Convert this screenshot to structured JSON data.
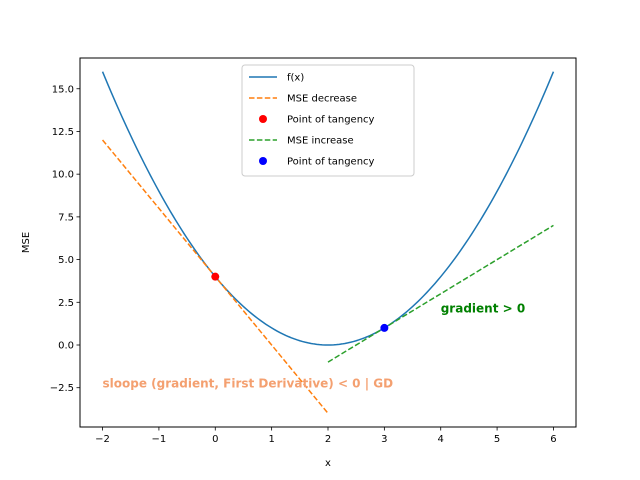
{
  "chart_data": {
    "type": "line",
    "title": "",
    "xlabel": "x",
    "ylabel": "MSE",
    "xlim": [
      -2.4,
      6.4
    ],
    "ylim": [
      -4.8,
      16.8
    ],
    "x_ticks": [
      -2,
      -1,
      0,
      1,
      2,
      3,
      4,
      5,
      6
    ],
    "x_tick_labels": [
      "−2",
      "−1",
      "0",
      "1",
      "2",
      "3",
      "4",
      "5",
      "6"
    ],
    "y_ticks": [
      -2.5,
      0,
      2.5,
      5,
      7.5,
      10,
      12.5,
      15
    ],
    "y_tick_labels": [
      "−2.5",
      "0.0",
      "2.5",
      "5.0",
      "7.5",
      "10.0",
      "12.5",
      "15.0"
    ],
    "grid": false,
    "legend_placement": "upper-center",
    "series": [
      {
        "name": "f(x)",
        "kind": "line",
        "style": "solid",
        "color": "#1f77b4",
        "x": [
          -2,
          -1.5,
          -1,
          -0.5,
          0,
          0.5,
          1,
          1.5,
          2,
          2.5,
          3,
          3.5,
          4,
          4.5,
          5,
          5.5,
          6
        ],
        "y": [
          16,
          12.25,
          9,
          6.25,
          4,
          2.25,
          1,
          0.25,
          0,
          0.25,
          1,
          2.25,
          4,
          6.25,
          9,
          12.25,
          16
        ]
      },
      {
        "name": "MSE decrease",
        "kind": "line",
        "style": "dashed",
        "color": "#ff7f0e",
        "x": [
          -2,
          2
        ],
        "y": [
          12,
          -4
        ]
      },
      {
        "name": "Point of tangency",
        "kind": "scatter",
        "color": "#ff0000",
        "x": [
          0
        ],
        "y": [
          4
        ]
      },
      {
        "name": "MSE increase",
        "kind": "line",
        "style": "dashed",
        "color": "#2ca02c",
        "x": [
          2,
          6
        ],
        "y": [
          -1,
          7
        ]
      },
      {
        "name": "Point of tangency",
        "kind": "scatter",
        "color": "#0000ff",
        "x": [
          3
        ],
        "y": [
          1
        ]
      }
    ],
    "annotations": [
      {
        "text": "sloope (gradient, First Derivative) < 0 | GD",
        "x": -2,
        "y": -2.2,
        "color": "#f4a070"
      },
      {
        "text": "gradient > 0",
        "x": 4,
        "y": 2.2,
        "color": "#008000"
      }
    ]
  }
}
